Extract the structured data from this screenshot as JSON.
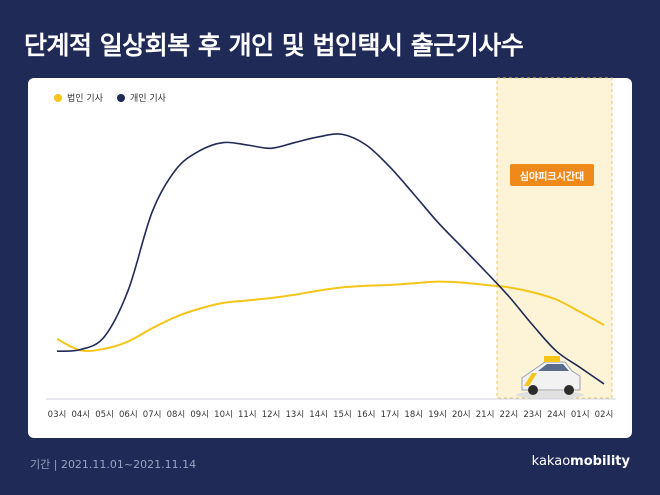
{
  "title": "단계적 일상회복 후 개인 및 법인택시 출근기사수",
  "footer": {
    "period": "기간 | 2021.11.01~2021.11.14",
    "brand_a": "kakao",
    "brand_b": "mobility"
  },
  "colors": {
    "background": "#1f2a56",
    "corporate": "#f5c518",
    "individual": "#1f2a56",
    "night_band": "#fdf3d6",
    "badge": "#ef8a1a"
  },
  "chart_data": {
    "type": "line",
    "title": "",
    "xlabel": "",
    "ylabel": "",
    "categories": [
      "03시",
      "04시",
      "05시",
      "06시",
      "07시",
      "08시",
      "09시",
      "10시",
      "11시",
      "12시",
      "13시",
      "14시",
      "15시",
      "16시",
      "17시",
      "18시",
      "19시",
      "20시",
      "21시",
      "22시",
      "23시",
      "24시",
      "01시",
      "02시"
    ],
    "series": [
      {
        "name": "법인 기사",
        "color": "#f5c518",
        "values": [
          15,
          1,
          3,
          12,
          28,
          42,
          52,
          59,
          62,
          65,
          69,
          74,
          78,
          80,
          81,
          83,
          85,
          84,
          81,
          78,
          72,
          63,
          48,
          32
        ]
      },
      {
        "name": "개인 기사",
        "color": "#1f2a56",
        "values": [
          0,
          2,
          18,
          75,
          170,
          222,
          245,
          255,
          252,
          248,
          255,
          262,
          265,
          252,
          225,
          192,
          158,
          128,
          98,
          67,
          32,
          0,
          -20,
          -40
        ]
      }
    ],
    "highlight": {
      "from": "22시",
      "to": "02시",
      "label": "심야피크시간대"
    },
    "legend": "top-left",
    "grid": false,
    "ylim": [
      -45,
      285
    ]
  }
}
